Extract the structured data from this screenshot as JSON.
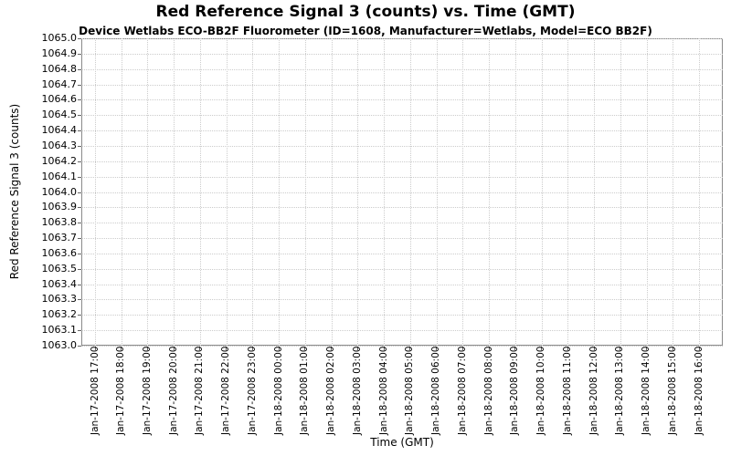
{
  "chart_data": {
    "type": "line",
    "title": "Red Reference Signal 3 (counts) vs. Time (GMT)",
    "subtitle": "Device Wetlabs ECO-BB2F Fluorometer (ID=1608, Manufacturer=Wetlabs, Model=ECO BB2F)",
    "xlabel": "Time (GMT)",
    "ylabel": "Red Reference Signal 3 (counts)",
    "ylim": [
      1063.0,
      1065.0
    ],
    "ytick_interval": 0.1,
    "y_ticks": [
      "1065.0",
      "1064.9",
      "1064.8",
      "1064.7",
      "1064.6",
      "1064.5",
      "1064.4",
      "1064.3",
      "1064.2",
      "1064.1",
      "1064.0",
      "1063.9",
      "1063.8",
      "1063.7",
      "1063.6",
      "1063.5",
      "1063.4",
      "1063.3",
      "1063.2",
      "1063.1",
      "1063.0"
    ],
    "x_ticks": [
      "Jan-17-2008 17:00",
      "Jan-17-2008 18:00",
      "Jan-17-2008 19:00",
      "Jan-17-2008 20:00",
      "Jan-17-2008 21:00",
      "Jan-17-2008 22:00",
      "Jan-17-2008 23:00",
      "Jan-18-2008 00:00",
      "Jan-18-2008 01:00",
      "Jan-18-2008 02:00",
      "Jan-18-2008 03:00",
      "Jan-18-2008 04:00",
      "Jan-18-2008 05:00",
      "Jan-18-2008 06:00",
      "Jan-18-2008 07:00",
      "Jan-18-2008 08:00",
      "Jan-18-2008 09:00",
      "Jan-18-2008 10:00",
      "Jan-18-2008 11:00",
      "Jan-18-2008 12:00",
      "Jan-18-2008 13:00",
      "Jan-18-2008 14:00",
      "Jan-18-2008 15:00",
      "Jan-18-2008 16:00"
    ],
    "series": [],
    "legend": "none",
    "grid": "dotted",
    "colors": {
      "background": "#ffffff",
      "grid": "#cccccc",
      "plot_border": "#8a8a8a",
      "tick": "#666666",
      "text": "#000000"
    }
  }
}
